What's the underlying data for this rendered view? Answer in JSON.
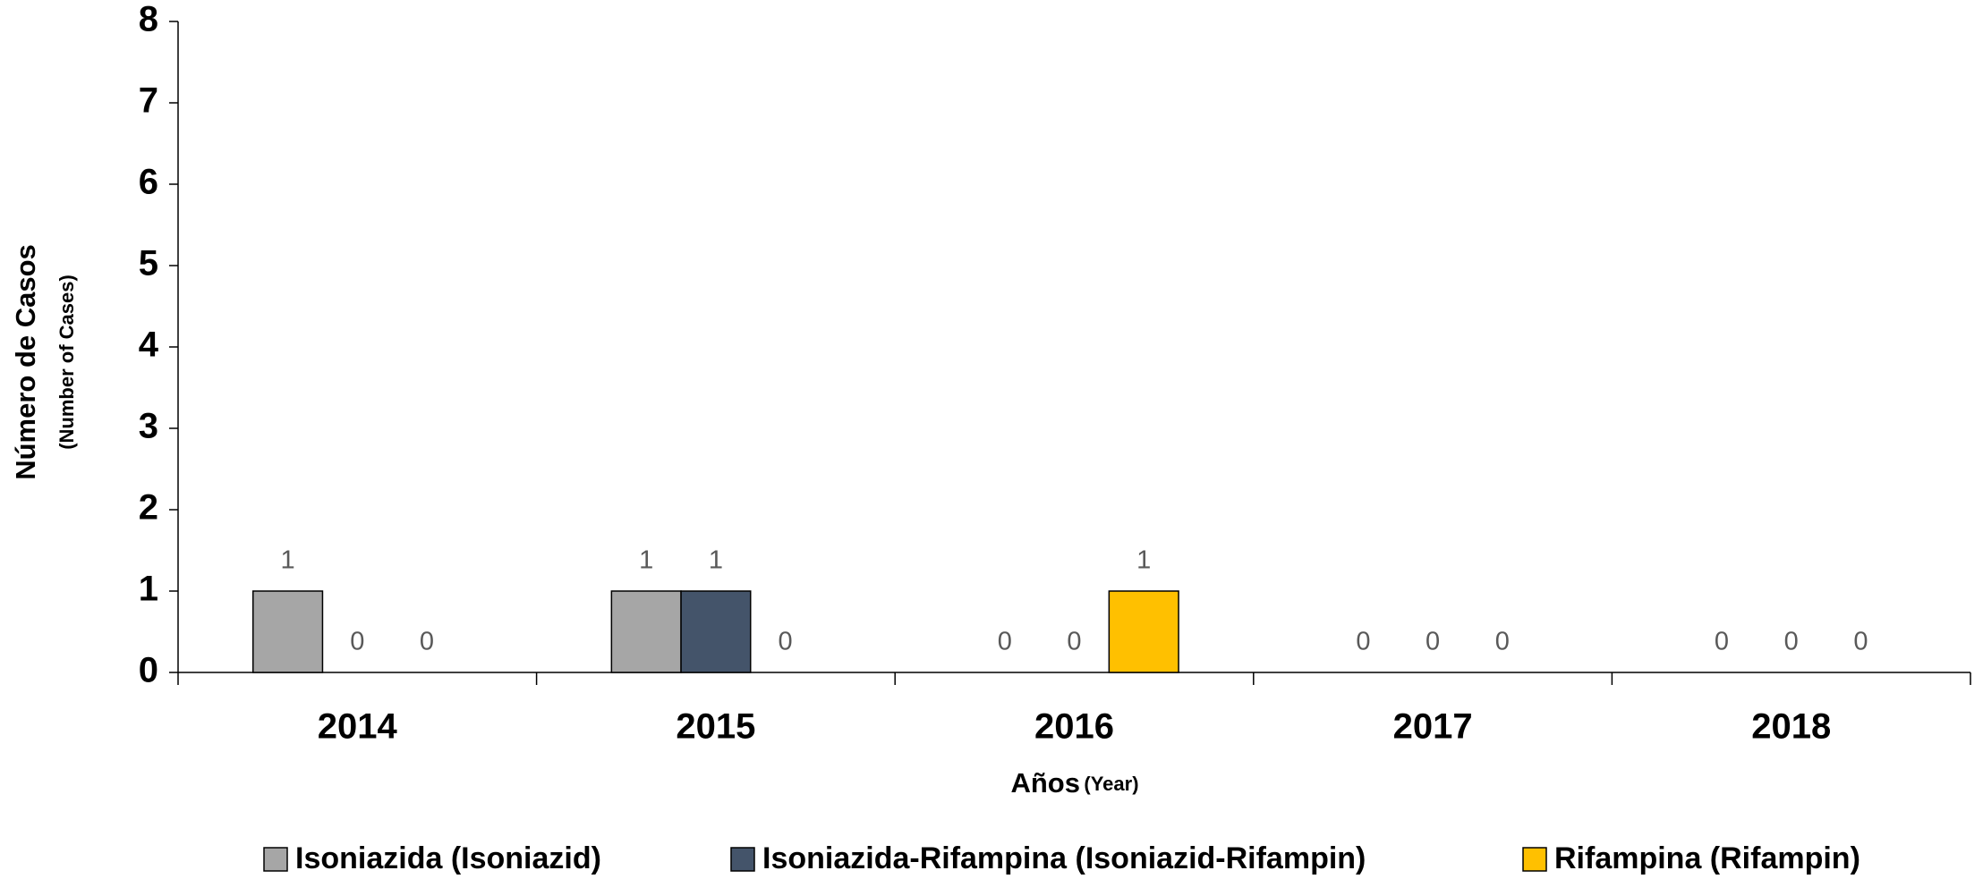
{
  "chart_data": {
    "type": "bar",
    "y_axis_label": "Número de Casos",
    "y_axis_sublabel": "(Number of Cases)",
    "x_axis_label": "Años",
    "x_axis_sublabel": "(Year)",
    "categories": [
      "2014",
      "2015",
      "2016",
      "2017",
      "2018"
    ],
    "series": [
      {
        "name": "Isoniazida (Isoniazid)",
        "color": "#a6a6a6",
        "values": [
          1,
          1,
          0,
          0,
          0
        ]
      },
      {
        "name": "Isoniazida-Rifampina (Isoniazid-Rifampin)",
        "color": "#44546a",
        "values": [
          0,
          1,
          0,
          0,
          0
        ]
      },
      {
        "name": "Rifampina (Rifampin)",
        "color": "#ffc000",
        "values": [
          0,
          0,
          1,
          0,
          0
        ]
      }
    ],
    "ylim": [
      0,
      8
    ],
    "yticks": [
      0,
      1,
      2,
      3,
      4,
      5,
      6,
      7,
      8
    ],
    "grid": false,
    "legend": "bottom"
  }
}
